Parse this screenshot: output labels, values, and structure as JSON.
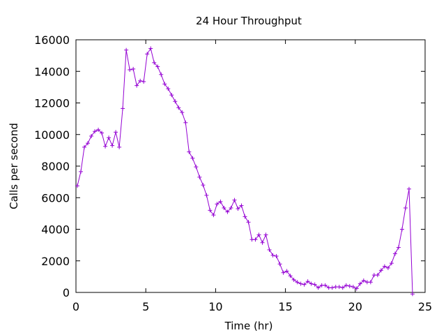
{
  "chart_data": {
    "type": "line",
    "title": "24 Hour Throughput",
    "xlabel": "Time (hr)",
    "ylabel": "Calls per second",
    "xlim": [
      0,
      25
    ],
    "ylim": [
      0,
      16000
    ],
    "xticks": [
      "0",
      "5",
      "10",
      "15",
      "20",
      "25"
    ],
    "yticks": [
      "0",
      "2000",
      "4000",
      "6000",
      "8000",
      "10000",
      "12000",
      "14000",
      "16000"
    ],
    "grid": false,
    "legend": "none",
    "series": [
      {
        "color": "#9400d3",
        "marker": "plus",
        "x": [
          0.1,
          0.35,
          0.6,
          0.85,
          1.1,
          1.35,
          1.6,
          1.85,
          2.1,
          2.35,
          2.6,
          2.85,
          3.1,
          3.35,
          3.6,
          3.85,
          4.1,
          4.35,
          4.6,
          4.85,
          5.1,
          5.35,
          5.6,
          5.85,
          6.1,
          6.35,
          6.6,
          6.85,
          7.1,
          7.35,
          7.6,
          7.85,
          8.1,
          8.35,
          8.6,
          8.85,
          9.1,
          9.35,
          9.6,
          9.85,
          10.1,
          10.35,
          10.6,
          10.85,
          11.1,
          11.35,
          11.6,
          11.85,
          12.1,
          12.35,
          12.6,
          12.85,
          13.1,
          13.35,
          13.6,
          13.85,
          14.1,
          14.35,
          14.6,
          14.85,
          15.1,
          15.35,
          15.6,
          15.85,
          16.1,
          16.35,
          16.6,
          16.85,
          17.1,
          17.35,
          17.6,
          17.85,
          18.1,
          18.35,
          18.6,
          18.85,
          19.1,
          19.35,
          19.6,
          19.85,
          20.1,
          20.35,
          20.6,
          20.85,
          21.1,
          21.35,
          21.6,
          21.85,
          22.1,
          22.35,
          22.6,
          22.85,
          23.1,
          23.35,
          23.6,
          23.85,
          24.1
        ],
        "y": [
          6750,
          7650,
          9200,
          9450,
          9900,
          10200,
          10300,
          10100,
          9250,
          9800,
          9300,
          10150,
          9200,
          11650,
          15350,
          14100,
          14150,
          13100,
          13400,
          13350,
          15100,
          15450,
          14550,
          14300,
          13800,
          13200,
          12900,
          12500,
          12100,
          11700,
          11400,
          10750,
          8900,
          8500,
          7950,
          7300,
          6800,
          6150,
          5200,
          4900,
          5600,
          5750,
          5350,
          5100,
          5350,
          5850,
          5300,
          5500,
          4800,
          4450,
          3350,
          3350,
          3650,
          3150,
          3650,
          2700,
          2350,
          2300,
          1800,
          1250,
          1350,
          1050,
          800,
          650,
          550,
          500,
          700,
          550,
          500,
          300,
          450,
          450,
          300,
          300,
          350,
          350,
          300,
          450,
          400,
          350,
          250,
          550,
          750,
          650,
          650,
          1100,
          1100,
          1400,
          1650,
          1550,
          1850,
          2450,
          2850,
          4000,
          5350,
          6550,
          -100
        ]
      }
    ]
  }
}
